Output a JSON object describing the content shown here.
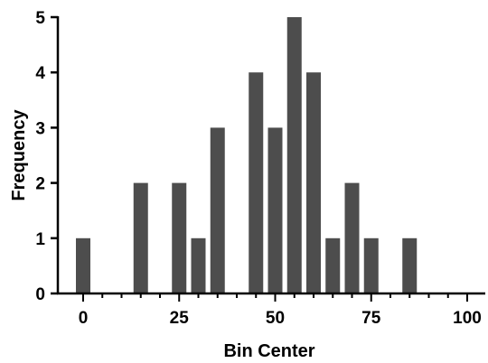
{
  "chart_data": {
    "type": "bar",
    "title": "",
    "xlabel": "Bin Center",
    "ylabel": "Frequency",
    "x": [
      0,
      15,
      25,
      30,
      35,
      45,
      50,
      55,
      60,
      65,
      70,
      75,
      85
    ],
    "values": [
      1,
      2,
      2,
      1,
      3,
      4,
      3,
      5,
      4,
      1,
      2,
      1,
      1
    ],
    "xlim": [
      0,
      100
    ],
    "ylim": [
      0,
      5
    ],
    "x_ticks": [
      0,
      25,
      50,
      75,
      100
    ],
    "y_ticks": [
      0,
      1,
      2,
      3,
      4,
      5
    ],
    "bar_color": "#4d4d4d",
    "grid": false,
    "legend": "none"
  }
}
